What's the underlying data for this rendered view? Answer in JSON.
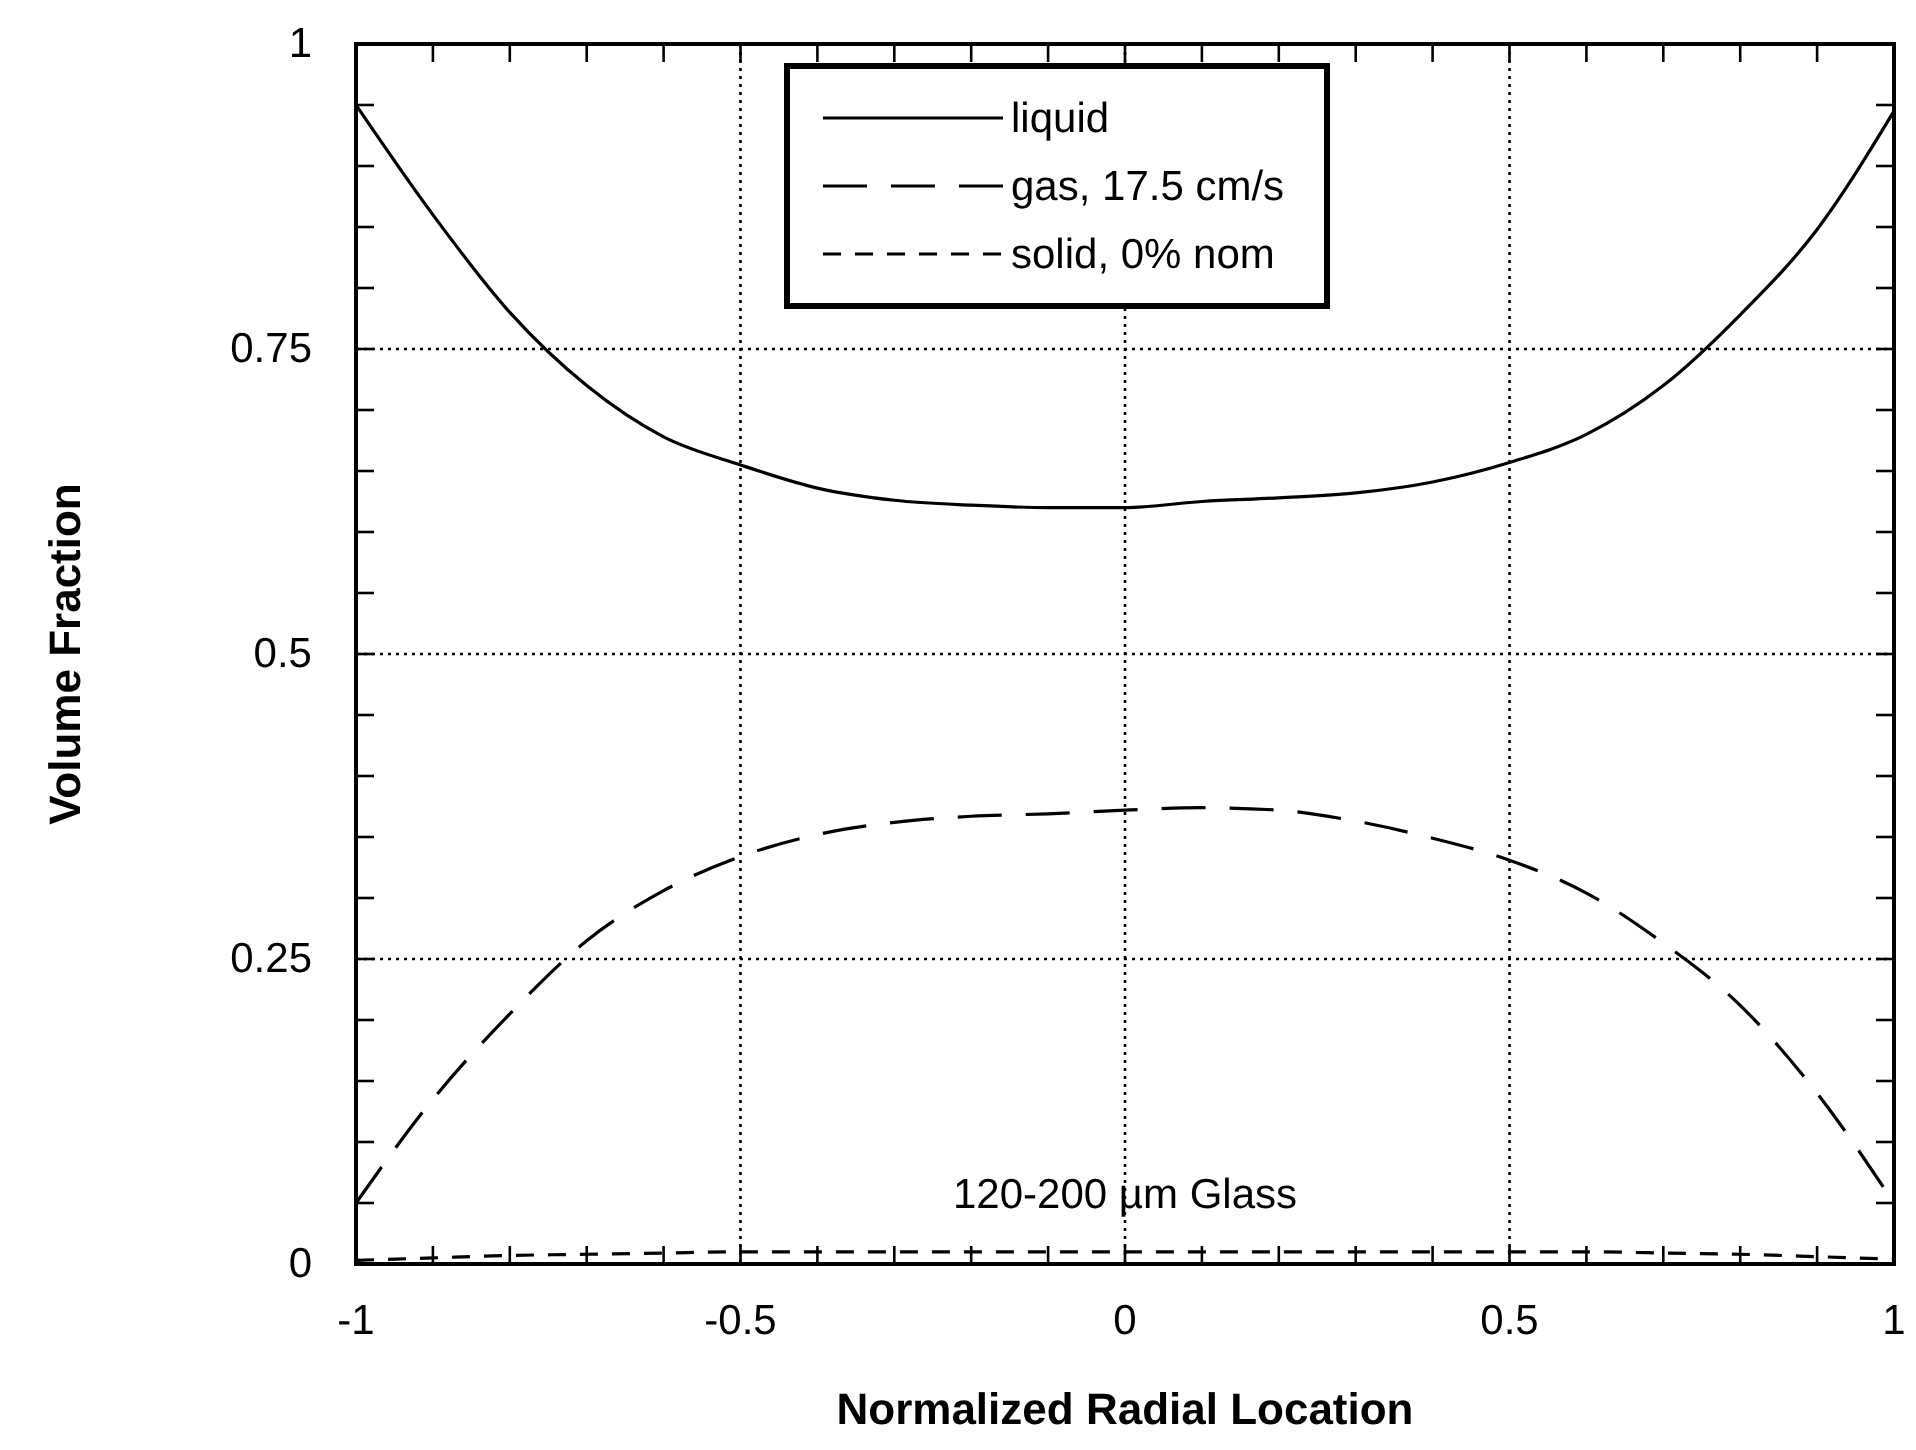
{
  "chart_data": {
    "type": "line",
    "xlabel": "Normalized Radial Location",
    "ylabel": "Volume Fraction",
    "x": [
      -1,
      -0.9,
      -0.8,
      -0.7,
      -0.6,
      -0.5,
      -0.4,
      -0.3,
      -0.2,
      -0.1,
      0,
      0.1,
      0.2,
      0.3,
      0.4,
      0.5,
      0.6,
      0.7,
      0.8,
      0.9,
      1
    ],
    "series": [
      {
        "name": "liquid",
        "color": "#000000",
        "line_style": "solid",
        "values": [
          0.95,
          0.86,
          0.78,
          0.72,
          0.678,
          0.655,
          0.636,
          0.626,
          0.622,
          0.62,
          0.62,
          0.625,
          0.628,
          0.632,
          0.641,
          0.657,
          0.68,
          0.72,
          0.778,
          0.848,
          0.945
        ]
      },
      {
        "name": "gas, 17.5  cm/s",
        "color": "#000000",
        "line_style": "dashed",
        "values": [
          0.05,
          0.135,
          0.205,
          0.265,
          0.306,
          0.334,
          0.352,
          0.362,
          0.367,
          0.369,
          0.372,
          0.374,
          0.372,
          0.363,
          0.349,
          0.331,
          0.304,
          0.263,
          0.212,
          0.14,
          0.05
        ]
      },
      {
        "name": "solid, 0% nom",
        "color": "#000000",
        "line_style": "dotted",
        "values": [
          0.003,
          0.005,
          0.007,
          0.008,
          0.009,
          0.01,
          0.01,
          0.01,
          0.01,
          0.01,
          0.01,
          0.01,
          0.01,
          0.01,
          0.01,
          0.01,
          0.01,
          0.009,
          0.008,
          0.006,
          0.004
        ]
      }
    ],
    "xlim": [
      -1,
      1
    ],
    "ylim": [
      0,
      1
    ],
    "xticks": [
      {
        "value": -1,
        "label": "-1"
      },
      {
        "value": -0.9,
        "label": null
      },
      {
        "value": -0.8,
        "label": null
      },
      {
        "value": -0.7,
        "label": null
      },
      {
        "value": -0.6,
        "label": null
      },
      {
        "value": -0.5,
        "label": "-0.5"
      },
      {
        "value": -0.4,
        "label": null
      },
      {
        "value": -0.3,
        "label": null
      },
      {
        "value": -0.2,
        "label": null
      },
      {
        "value": -0.1,
        "label": null
      },
      0,
      {
        "value": 0.1,
        "label": null
      },
      {
        "value": 0.2,
        "label": null
      },
      {
        "value": 0.3,
        "label": null
      },
      {
        "value": 0.4,
        "label": null
      },
      0.5,
      {
        "value": 0.6,
        "label": null
      },
      {
        "value": 0.7,
        "label": null
      },
      {
        "value": 0.8,
        "label": null
      },
      {
        "value": 0.9,
        "label": null
      },
      1
    ],
    "yticks": [
      0,
      {
        "value": 0.05,
        "label": null
      },
      {
        "value": 0.1,
        "label": null
      },
      {
        "value": 0.15,
        "label": null
      },
      {
        "value": 0.2,
        "label": null
      },
      0.25,
      {
        "value": 0.3,
        "label": null
      },
      {
        "value": 0.35,
        "label": null
      },
      {
        "value": 0.4,
        "label": null
      },
      {
        "value": 0.45,
        "label": null
      },
      0.5,
      {
        "value": 0.55,
        "label": null
      },
      {
        "value": 0.6,
        "label": null
      },
      {
        "value": 0.65,
        "label": null
      },
      {
        "value": 0.7,
        "label": null
      },
      0.75,
      {
        "value": 0.8,
        "label": null
      },
      {
        "value": 0.85,
        "label": null
      },
      {
        "value": 0.9,
        "label": null
      },
      {
        "value": 0.95,
        "label": null
      },
      1
    ],
    "grid": true,
    "legend": "top",
    "marker": "none",
    "annotations": [
      "120-200 µm Glass"
    ]
  }
}
